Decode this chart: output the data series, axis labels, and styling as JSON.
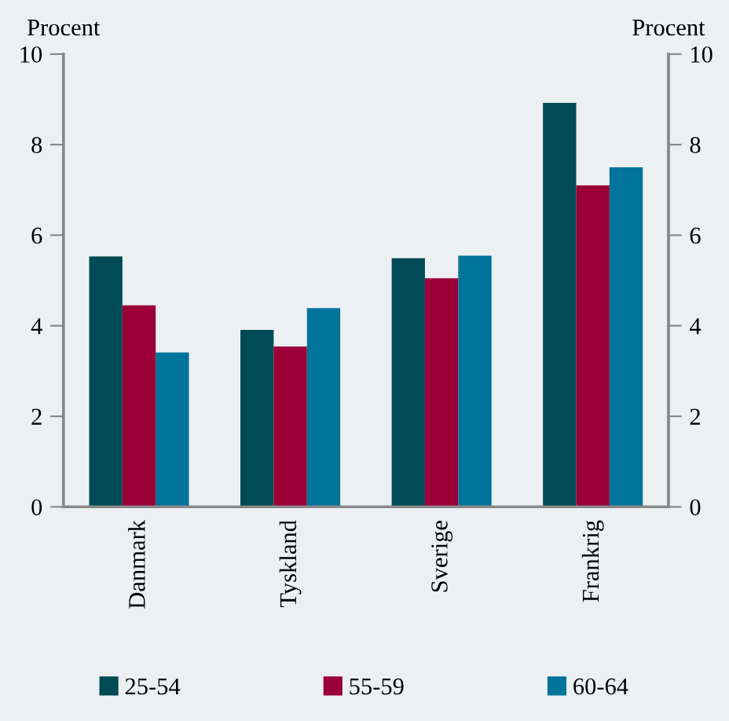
{
  "chart_data": {
    "type": "bar",
    "ylabel": "Procent",
    "y2label": "Procent",
    "categories": [
      "Danmark",
      "Tyskland",
      "Sverige",
      "Frankrig"
    ],
    "series": [
      {
        "name": "25-54",
        "color": "#004b55",
        "values": [
          5.53,
          3.91,
          5.49,
          8.92
        ]
      },
      {
        "name": "55-59",
        "color": "#9b0037",
        "values": [
          4.45,
          3.54,
          5.05,
          7.1
        ]
      },
      {
        "name": "60-64",
        "color": "#00749a",
        "values": [
          3.41,
          4.39,
          5.55,
          7.5
        ]
      }
    ],
    "ylim": [
      0,
      10
    ],
    "yticks": [
      0,
      2,
      4,
      6,
      8,
      10
    ],
    "y2lim": [
      0,
      10
    ],
    "y2ticks": [
      0,
      2,
      4,
      6,
      8,
      10
    ],
    "grid": false,
    "legend": "bottom"
  }
}
